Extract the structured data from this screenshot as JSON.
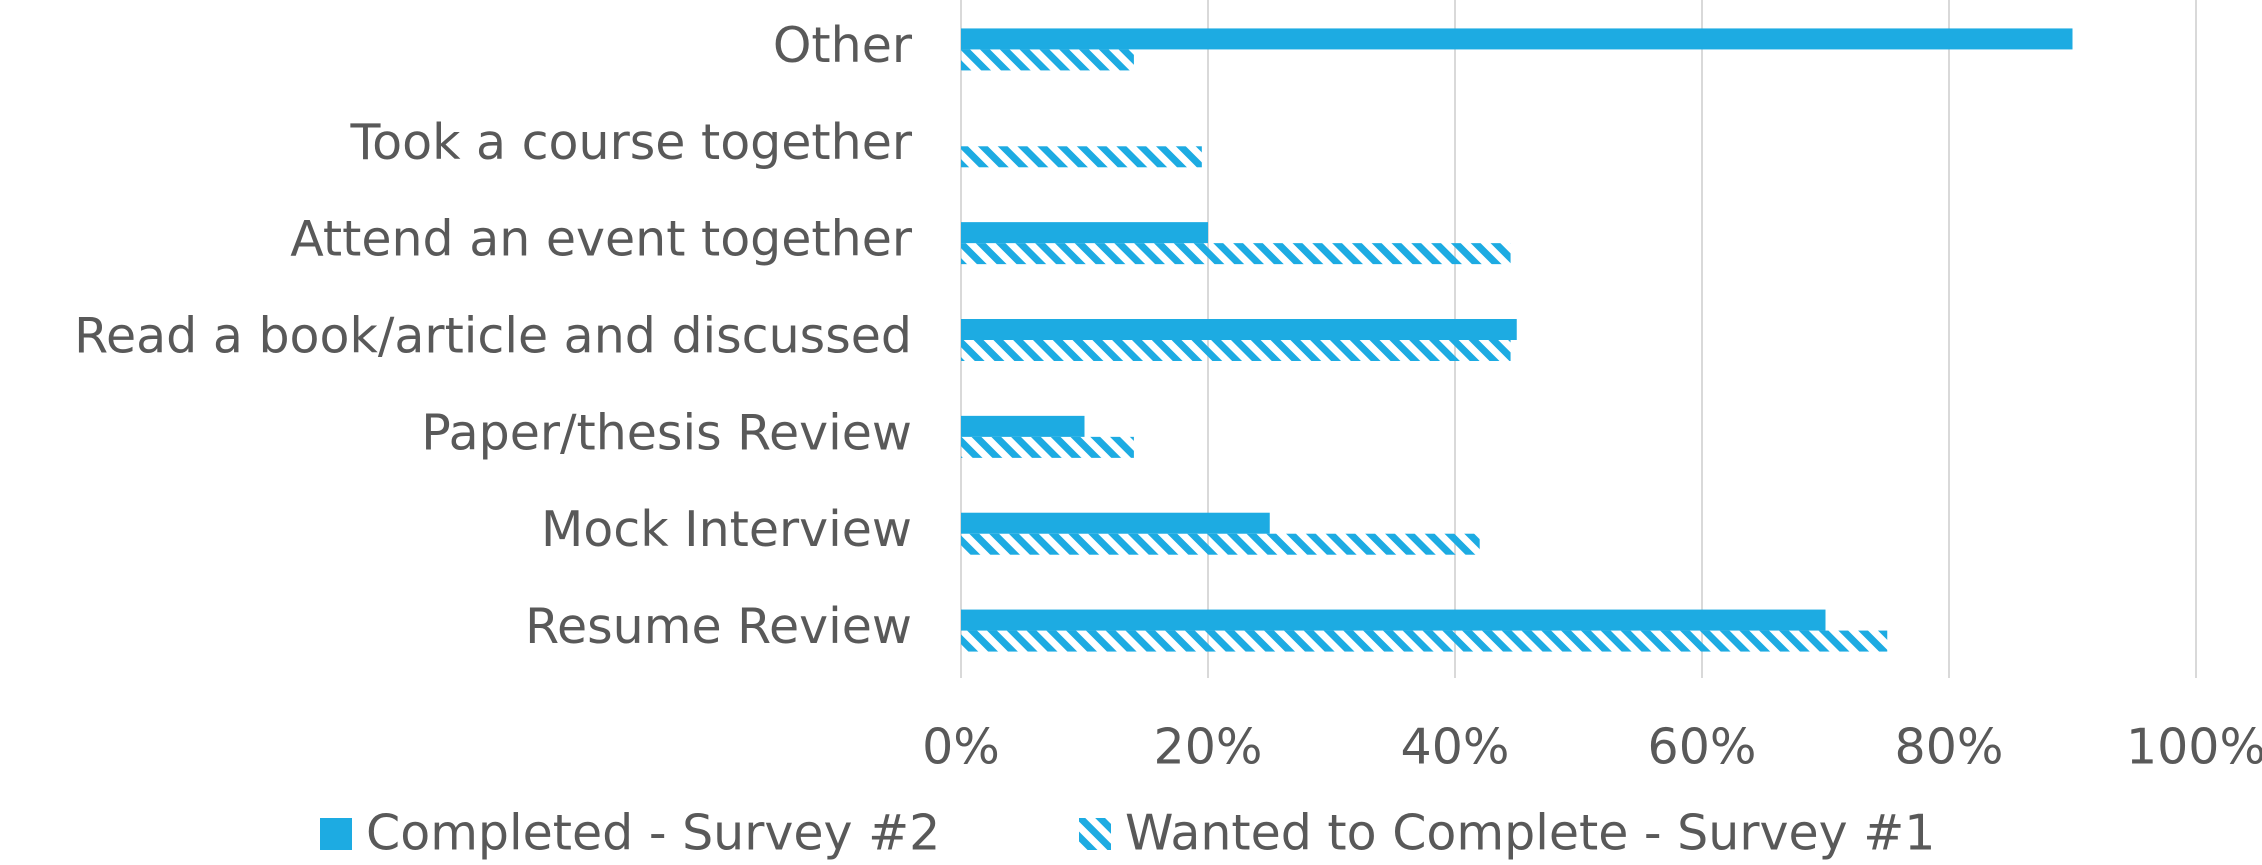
{
  "chart_data": {
    "type": "barh",
    "categories": [
      "Other",
      "Took a course together",
      "Attend an event together",
      "Read a book/article and discussed",
      "Paper/thesis Review",
      "Mock Interview",
      "Resume Review"
    ],
    "series": [
      {
        "name": "Completed - Survey #2",
        "color": "#1dabe2",
        "pattern": "solid",
        "values": [
          90,
          0,
          20,
          45,
          10,
          25,
          70
        ]
      },
      {
        "name": "Wanted to Complete - Survey #1",
        "color": "#1dabe2",
        "pattern": "hatch",
        "values": [
          14,
          19.5,
          44.5,
          44.5,
          14,
          42,
          75
        ]
      }
    ],
    "xlim": [
      0,
      100
    ],
    "xticks": [
      {
        "value": 0,
        "label": "0%"
      },
      {
        "value": 20,
        "label": "20%"
      },
      {
        "value": 40,
        "label": "40%"
      },
      {
        "value": 60,
        "label": "60%"
      },
      {
        "value": 80,
        "label": "80%"
      },
      {
        "value": 100,
        "label": "100%"
      }
    ],
    "grid": true,
    "legend": "bottom"
  }
}
